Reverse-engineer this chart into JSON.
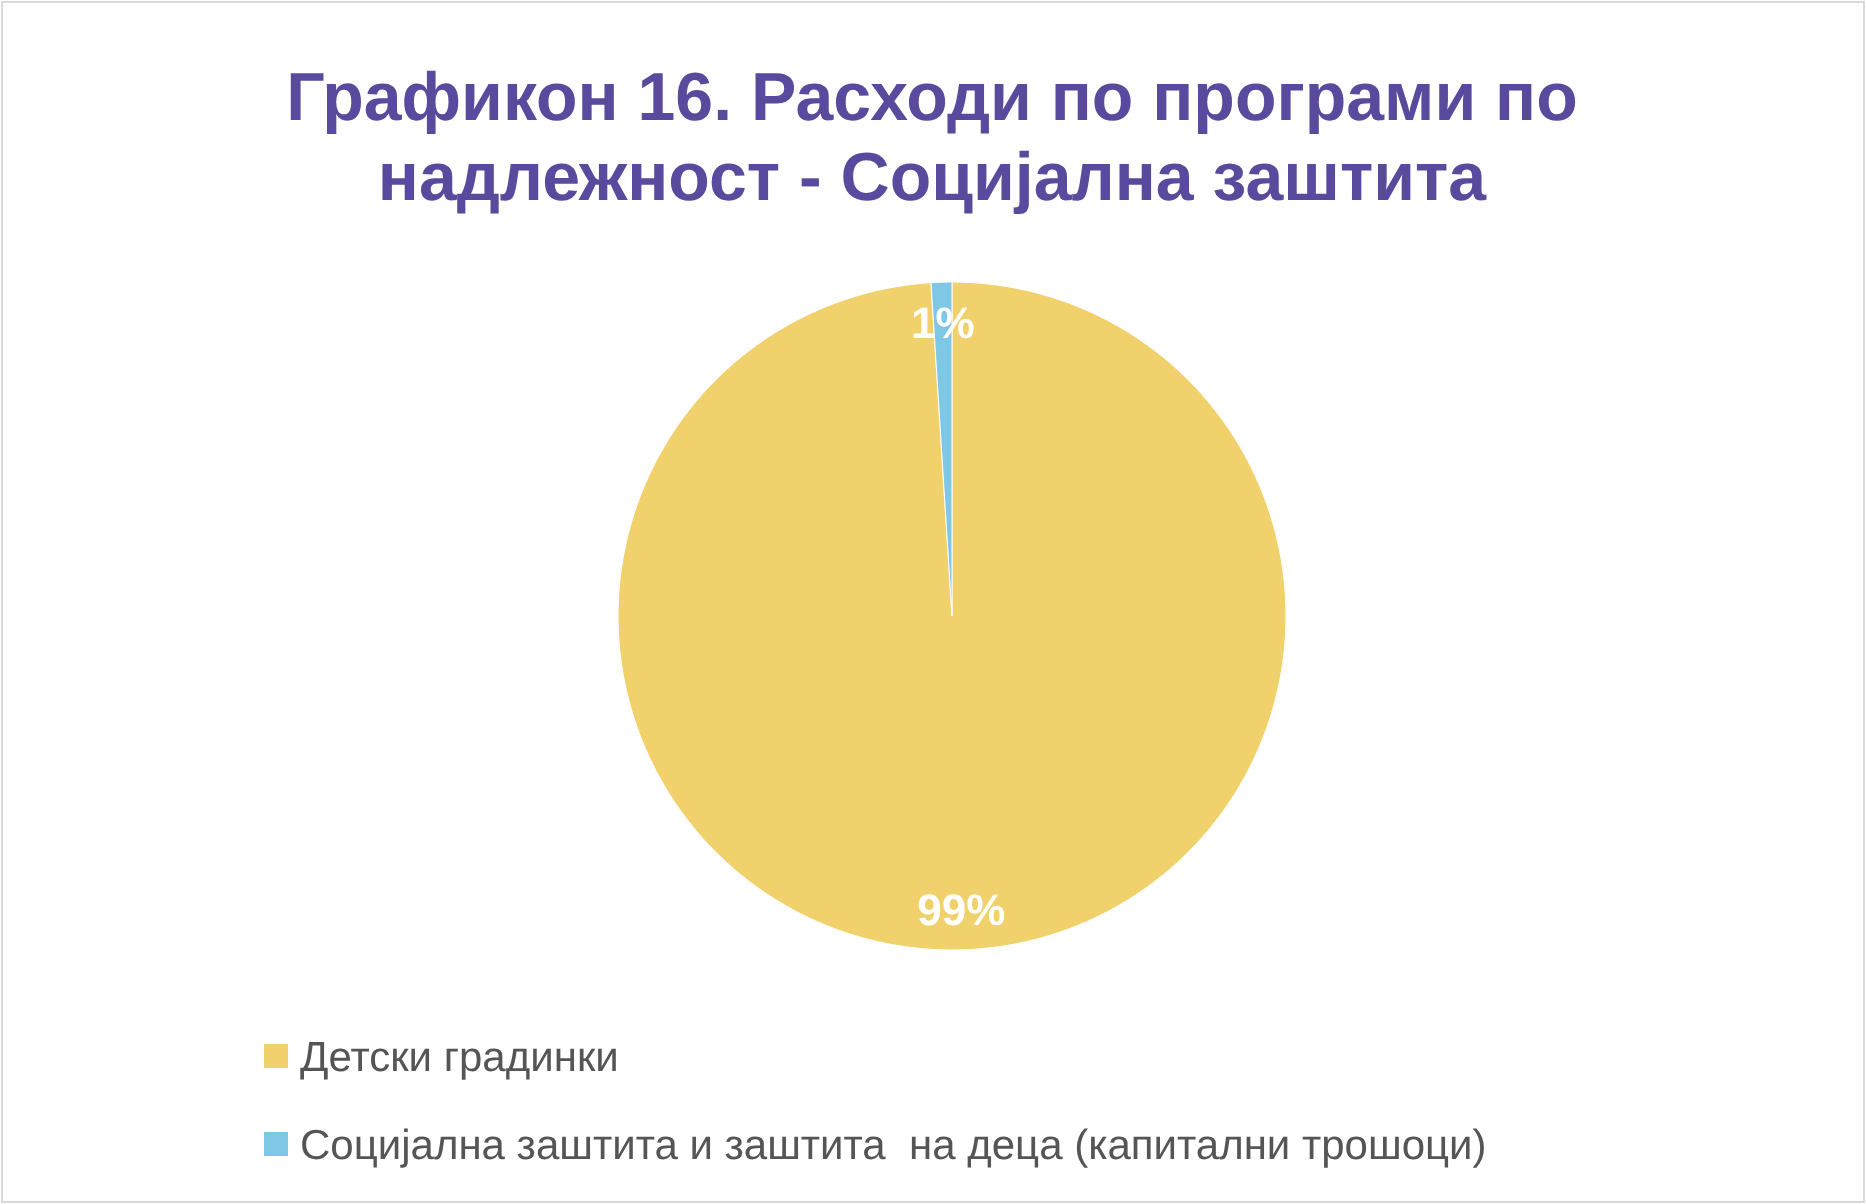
{
  "chart_data": {
    "type": "pie",
    "title": "Графикон 16. Расходи по програми по надлежност - Социјална заштита",
    "categories": [
      "Детски градинки",
      "Социјална заштита и заштита  на деца (капитални трошоци)"
    ],
    "values": [
      99,
      1
    ],
    "colors": [
      "#f0d16b",
      "#7ec8e6"
    ],
    "value_labels": [
      "99%",
      "1%"
    ],
    "legend": "bottom"
  }
}
